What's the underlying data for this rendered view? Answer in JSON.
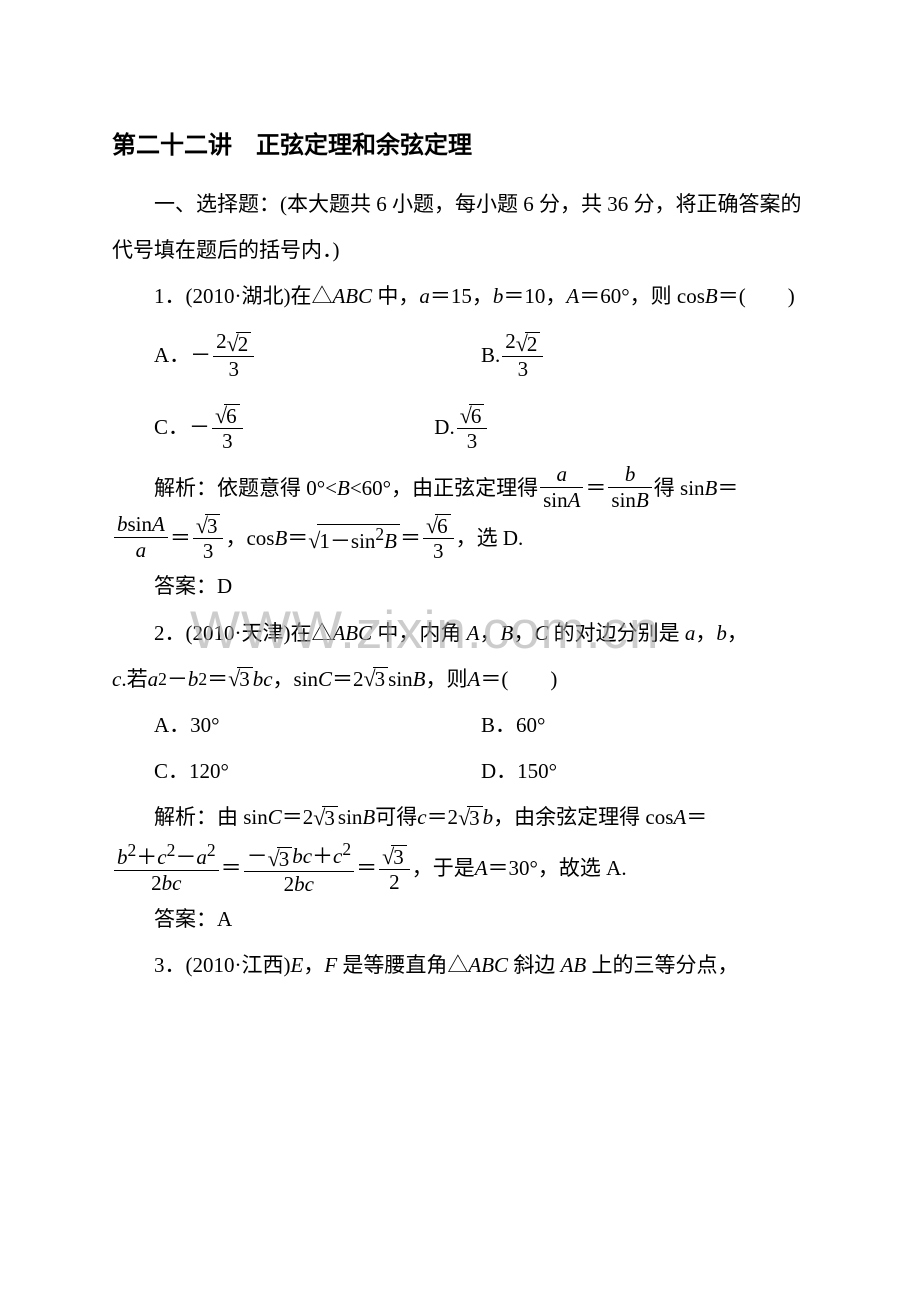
{
  "title": "第二十二讲　正弦定理和余弦定理",
  "section1_intro": "一、选择题：(本大题共 6 小题，每小题 6 分，共 36 分，将正确答案的代号填在题后的括号内．)",
  "q1": {
    "stem_a": "1．(2010·湖北)在△",
    "stem_abc": "ABC",
    "stem_b": " 中，",
    "a_sym": "a",
    "eq_a": "＝15，",
    "b_sym": "b",
    "eq_b": "＝10，",
    "A_sym": "A",
    "eq_A": "＝60°，则 cos",
    "B_sym": "B",
    "tail": "＝(　　)",
    "optA_label": "A．－",
    "optA_num": "2",
    "optA_rad": "2",
    "optA_den": "3",
    "optB_label": "B.",
    "optB_num": "2",
    "optB_rad": "2",
    "optB_den": "3",
    "optC_label": "C．－",
    "optC_rad": "6",
    "optC_den": "3",
    "optD_label": "D.",
    "optD_rad": "6",
    "optD_den": "3",
    "ana_a": "解析：依题意得 0°<",
    "ana_B": "B",
    "ana_b": "<60°，由正弦定理得",
    "ana_frac1_num": "a",
    "ana_frac1_den_a": "sin",
    "ana_frac1_den_b": "A",
    "ana_eq": "＝",
    "ana_frac2_num": "b",
    "ana_frac2_den_a": "sin",
    "ana_frac2_den_b": "B",
    "ana_c": "得 sin",
    "ana_c2": "＝",
    "line2_frac1_num_a": "b",
    "line2_frac1_num_b": "sin",
    "line2_frac1_num_c": "A",
    "line2_frac1_den": "a",
    "line2_eq1": "＝",
    "line2_frac2_rad": "3",
    "line2_frac2_den": "3",
    "line2_mid": "，cos",
    "line2_B": "B",
    "line2_eq2": "＝",
    "line2_sqrt_a": "1－sin",
    "line2_sqrt_sup": "2",
    "line2_sqrt_b": "B",
    "line2_eq3": "＝",
    "line2_frac3_rad": "6",
    "line2_frac3_den": "3",
    "line2_tail": "，选 D.",
    "ans": "答案：D"
  },
  "q2": {
    "stem_a": "2．(2010·天津)在△",
    "stem_abc": "ABC",
    "stem_b": " 中，内角 ",
    "A": "A",
    "comma1": "，",
    "B": "B",
    "comma2": "，",
    "C": "C",
    "stem_c": " 的对边分别是 ",
    "a": "a",
    "comma3": "，",
    "b": "b",
    "comma4": "，",
    "line2_c": "c",
    "line2_a": ".若 ",
    "line2_a2": "a",
    "line2_sup": "2",
    "line2_minus": "－",
    "line2_b": "b",
    "line2_sup2": "2",
    "line2_eq": "＝",
    "line2_rad": "3",
    "line2_bc": "bc",
    "line2_comma": "，sin",
    "line2_C": "C",
    "line2_eq2": "＝2",
    "line2_rad2": "3",
    "line2_sin": "sin",
    "line2_B2": "B",
    "line2_then": "，则 ",
    "line2_A": "A",
    "line2_tail": "＝(　　)",
    "optA": "A．30°",
    "optB": "B．60°",
    "optC": "C．120°",
    "optD": "D．150°",
    "ana_a": "解析：由 sin",
    "ana_C": "C",
    "ana_eq": "＝2",
    "ana_rad": "3",
    "ana_sin": "sin",
    "ana_B": "B",
    "ana_mid": " 可得 ",
    "ana_c": "c",
    "ana_eq2": "＝2",
    "ana_rad2": "3",
    "ana_b": "b",
    "ana_tail": "，由余弦定理得 cos",
    "ana_A": "A",
    "ana_eq3": "＝",
    "l2_frac1_num_a": "b",
    "l2_frac1_num_s1": "2",
    "l2_frac1_num_b": "＋",
    "l2_frac1_num_c": "c",
    "l2_frac1_num_s2": "2",
    "l2_frac1_num_d": "－",
    "l2_frac1_num_e": "a",
    "l2_frac1_num_s3": "2",
    "l2_frac1_den_a": "2",
    "l2_frac1_den_b": "bc",
    "l2_eq1": "＝",
    "l2_frac2_num_a": "－",
    "l2_frac2_num_rad": "3",
    "l2_frac2_num_b": "bc",
    "l2_frac2_num_c": "＋",
    "l2_frac2_num_d": "c",
    "l2_frac2_num_s": "2",
    "l2_frac2_den_a": "2",
    "l2_frac2_den_b": "bc",
    "l2_eq2": "＝",
    "l2_frac3_rad": "3",
    "l2_frac3_den": "2",
    "l2_mid": "，于是 ",
    "l2_A": "A",
    "l2_tail": "＝30°，故选 A.",
    "ans": "答案：A"
  },
  "q3": {
    "stem_a": "3．(2010·江西)",
    "E": "E",
    "comma": "，",
    "F": "F",
    "stem_b": " 是等腰直角△",
    "ABC": "ABC",
    "stem_c": " 斜边 ",
    "AB": "AB",
    "stem_d": " 上的三等分点，"
  },
  "watermark": "WWW.zixin.com.cn"
}
